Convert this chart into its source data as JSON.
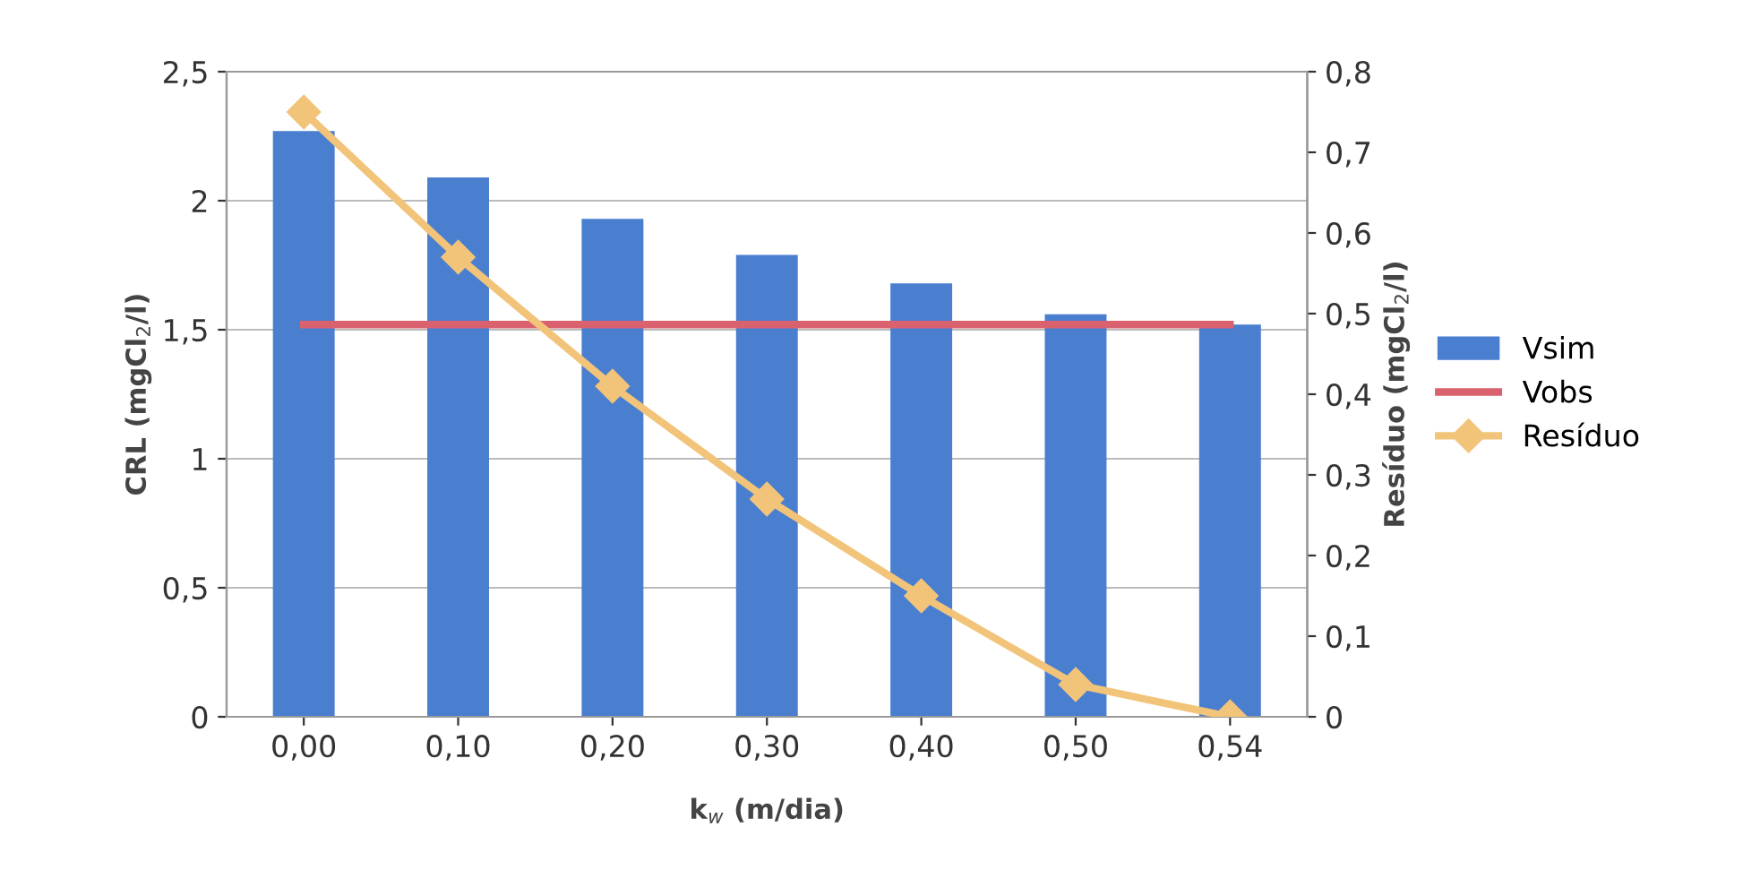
{
  "chart_data": {
    "type": "bar",
    "xlabel": "k$_{w}$ (m/dia)",
    "ylabel": "CRL (mgCl$_{2}$/l)",
    "y2label": "Resíduo (mgCl$_{2}$/l)",
    "categories": [
      "0,00",
      "0,10",
      "0,20",
      "0,30",
      "0,40",
      "0,50",
      "0,54"
    ],
    "series": [
      {
        "name": "Vsim",
        "color": "#4a7fd0",
        "values": [
          2.27,
          2.09,
          1.93,
          1.79,
          1.68,
          1.56,
          1.52
        ]
      },
      {
        "name": "Vobs",
        "type": "line",
        "color": "#d9626e",
        "marker": "none",
        "values": [
          1.52,
          1.52,
          1.52,
          1.52,
          1.52,
          1.52,
          1.52
        ]
      },
      {
        "name": "Resíduo",
        "type": "line",
        "axis": "y2",
        "color": "#f2c47a",
        "marker": "diamond",
        "values": [
          0.75,
          0.57,
          0.41,
          0.27,
          0.15,
          0.04,
          0.0
        ]
      }
    ],
    "ylim": [
      0,
      2.5
    ],
    "yticks": [
      {
        "value": 0,
        "label": "0"
      },
      {
        "value": 0.5,
        "label": "0,5"
      },
      {
        "value": 1,
        "label": "1"
      },
      {
        "value": 1.5,
        "label": "1,5"
      },
      {
        "value": 2,
        "label": "2"
      },
      {
        "value": 2.5,
        "label": "2,5"
      }
    ],
    "y2lim": [
      0,
      0.8
    ],
    "y2ticks": [
      {
        "value": 0,
        "label": "0"
      },
      {
        "value": 0.1,
        "label": "0,1"
      },
      {
        "value": 0.2,
        "label": "0,2"
      },
      {
        "value": 0.3,
        "label": "0,3"
      },
      {
        "value": 0.4,
        "label": "0,4"
      },
      {
        "value": 0.5,
        "label": "0,5"
      },
      {
        "value": 0.6,
        "label": "0,6"
      },
      {
        "value": 0.7,
        "label": "0,7"
      },
      {
        "value": 0.8,
        "label": "0,8"
      }
    ],
    "grid": "y",
    "legend": "right"
  }
}
